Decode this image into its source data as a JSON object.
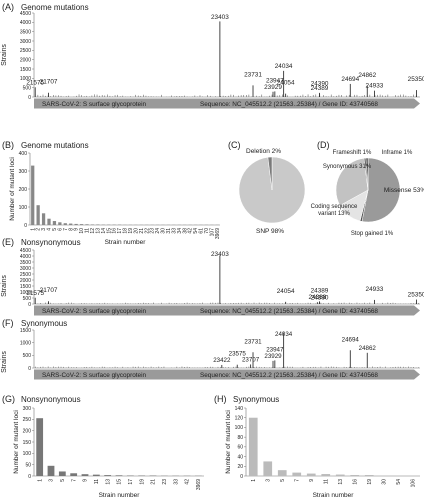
{
  "panels": {
    "A": {
      "letter": "(A)",
      "title": "Genome mutations",
      "ylabel": "Strains"
    },
    "B": {
      "letter": "(B)",
      "title": "Genome mutations"
    },
    "C": {
      "letter": "(C)"
    },
    "D": {
      "letter": "(D)"
    },
    "E": {
      "letter": "(E)",
      "title": "Nonsynonymous",
      "ylabel": "Strains"
    },
    "F": {
      "letter": "(F)",
      "title": "Synonymous",
      "ylabel": "Strains"
    },
    "G": {
      "letter": "(G)",
      "title": "Nonsynonymous"
    },
    "H": {
      "letter": "(H)",
      "title": "Synonymous"
    }
  },
  "gene_arrow": {
    "left": "SARS-CoV-2: S surface glycoprotein",
    "right": "Sequence: NC_045512.2  (21563..25384) / Gene ID: 43740568"
  },
  "chart_data": [
    {
      "id": "A",
      "type": "bar",
      "title": "Genome mutations",
      "ylabel": "Strains",
      "xlim": [
        21563,
        25384
      ],
      "ylim": [
        0,
        4500
      ],
      "yticks": [
        0,
        500,
        1000,
        1500,
        2000,
        2500,
        3000,
        3500,
        4000,
        4500
      ],
      "peaks": [
        {
          "pos": 21575,
          "value": 520,
          "label": "21575"
        },
        {
          "pos": 21707,
          "value": 230,
          "label": "21707"
        },
        {
          "pos": 23403,
          "value": 4050,
          "label": "23403"
        },
        {
          "pos": 23731,
          "value": 620,
          "label": "23731"
        },
        {
          "pos": 23929,
          "value": 280,
          "label": "23929"
        },
        {
          "pos": 23947,
          "value": 300,
          "label": "23947"
        },
        {
          "pos": 24034,
          "value": 1400,
          "label": "24034"
        },
        {
          "pos": 24054,
          "value": 180,
          "label": "24054"
        },
        {
          "pos": 24389,
          "value": 220,
          "label": "24389"
        },
        {
          "pos": 24390,
          "value": 140,
          "label": "24390"
        },
        {
          "pos": 24694,
          "value": 700,
          "label": "24694"
        },
        {
          "pos": 24862,
          "value": 600,
          "label": "24862"
        },
        {
          "pos": 24933,
          "value": 340,
          "label": "24933"
        },
        {
          "pos": 25350,
          "value": 370,
          "label": "25350"
        }
      ]
    },
    {
      "id": "B",
      "type": "bar",
      "title": "Genome mutations",
      "xlabel": "Strain number",
      "ylabel": "Number of mutant loci",
      "ylim": [
        0,
        400
      ],
      "yticks": [
        0,
        100,
        200,
        300,
        400
      ],
      "categories": [
        "1",
        "2",
        "3",
        "4",
        "5",
        "6",
        "7",
        "8",
        "9",
        "10",
        "11",
        "12",
        "13",
        "14",
        "15",
        "16",
        "17",
        "18",
        "19",
        "20",
        "21",
        "22",
        "23",
        "24",
        "30",
        "31",
        "33",
        "34",
        "38",
        "42",
        "54",
        "61",
        "70",
        "107",
        "3969"
      ],
      "values": [
        330,
        110,
        65,
        35,
        22,
        15,
        10,
        8,
        6,
        5,
        4,
        3,
        3,
        2,
        2,
        2,
        2,
        1,
        1,
        1,
        1,
        1,
        1,
        1,
        1,
        1,
        1,
        1,
        1,
        1,
        1,
        1,
        1,
        1,
        1
      ]
    },
    {
      "id": "C",
      "type": "pie",
      "slices": [
        {
          "label": "SNP 98%",
          "value": 98,
          "color": "#c9c9c9"
        },
        {
          "label": "Deletion 2%",
          "value": 2,
          "color": "#7a7a7a"
        }
      ]
    },
    {
      "id": "D",
      "type": "pie",
      "slices": [
        {
          "label": "Missense 53%",
          "value": 53,
          "color": "#9a9a9a"
        },
        {
          "label": "Stop gained 1%",
          "value": 1,
          "color": "#555555"
        },
        {
          "label": "Coding sequence variant 13%",
          "value": 13,
          "color": "#e4e4e4"
        },
        {
          "label": "Synonymous 31%",
          "value": 31,
          "color": "#c2c2c2"
        },
        {
          "label": "Frameshift 1%",
          "value": 1,
          "color": "#6b6b6b"
        },
        {
          "label": "Inframe 1%",
          "value": 1,
          "color": "#444444"
        }
      ]
    },
    {
      "id": "E",
      "type": "bar",
      "title": "Nonsynonymous",
      "ylabel": "Strains",
      "xlim": [
        21563,
        25384
      ],
      "ylim": [
        0,
        4500
      ],
      "yticks": [
        0,
        500,
        1000,
        1500,
        2000,
        2500,
        3000,
        3500,
        4000,
        4500
      ],
      "peaks": [
        {
          "pos": 21575,
          "value": 520,
          "label": "21575"
        },
        {
          "pos": 21707,
          "value": 230,
          "label": "21707"
        },
        {
          "pos": 23403,
          "value": 4050,
          "label": "23403"
        },
        {
          "pos": 24054,
          "value": 180,
          "label": "24054"
        },
        {
          "pos": 24368,
          "value": 150,
          "label": "24368"
        },
        {
          "pos": 24389,
          "value": 220,
          "label": "24389"
        },
        {
          "pos": 24390,
          "value": 140,
          "label": "24390"
        },
        {
          "pos": 24933,
          "value": 340,
          "label": "24933"
        },
        {
          "pos": 25350,
          "value": 370,
          "label": "25350"
        }
      ]
    },
    {
      "id": "F",
      "type": "bar",
      "title": "Synonymous",
      "ylabel": "Strains",
      "xlim": [
        21563,
        25384
      ],
      "ylim": [
        0,
        1500
      ],
      "yticks": [
        0,
        500,
        1000,
        1500
      ],
      "peaks": [
        {
          "pos": 23422,
          "value": 120,
          "label": "23422"
        },
        {
          "pos": 23575,
          "value": 130,
          "label": "23575"
        },
        {
          "pos": 23707,
          "value": 140,
          "label": "23707"
        },
        {
          "pos": 23731,
          "value": 620,
          "label": "23731"
        },
        {
          "pos": 23929,
          "value": 280,
          "label": "23929"
        },
        {
          "pos": 23947,
          "value": 300,
          "label": "23947"
        },
        {
          "pos": 24034,
          "value": 1400,
          "label": "24034"
        },
        {
          "pos": 24694,
          "value": 700,
          "label": "24694"
        },
        {
          "pos": 24862,
          "value": 600,
          "label": "24862"
        }
      ]
    },
    {
      "id": "G",
      "type": "bar",
      "title": "Nonsynonymous",
      "xlabel": "Strain number",
      "ylabel": "Number of mutant loci",
      "ylim": [
        0,
        300
      ],
      "yticks": [
        0,
        50,
        100,
        150,
        200,
        250,
        300
      ],
      "categories": [
        "1",
        "3",
        "5",
        "7",
        "9",
        "11",
        "13",
        "15",
        "17",
        "19",
        "21",
        "23",
        "33",
        "42",
        "3969"
      ],
      "values": [
        255,
        45,
        20,
        12,
        8,
        6,
        4,
        3,
        2,
        2,
        2,
        1,
        1,
        1,
        1
      ]
    },
    {
      "id": "H",
      "type": "bar",
      "title": "Synonymous",
      "xlabel": "Strain number",
      "ylabel": "Number of mutant loci",
      "ylim": [
        0,
        140
      ],
      "yticks": [
        0,
        20,
        40,
        60,
        80,
        100,
        120,
        140
      ],
      "categories": [
        "1",
        "3",
        "5",
        "7",
        "9",
        "11",
        "13",
        "16",
        "19",
        "30",
        "54",
        "106"
      ],
      "values": [
        120,
        30,
        12,
        7,
        5,
        4,
        3,
        2,
        2,
        1,
        1,
        1
      ]
    }
  ]
}
